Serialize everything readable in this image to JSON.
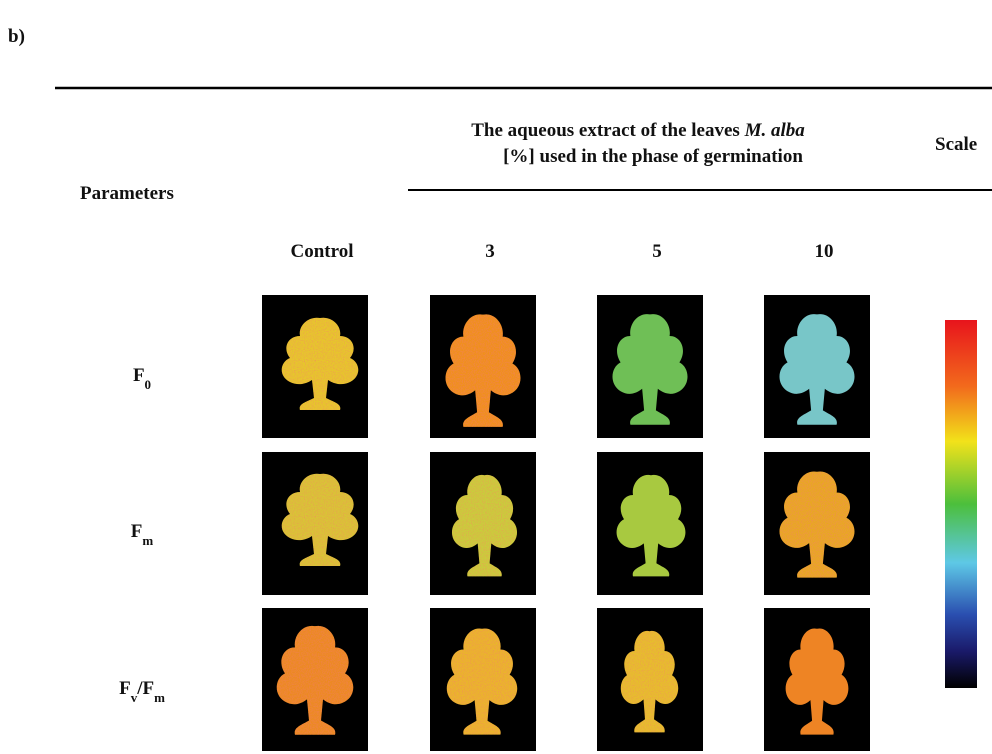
{
  "panel_label": "b)",
  "header": {
    "line1": [
      {
        "text": "The aqueous extract of the leaves "
      },
      {
        "text": "M. alba",
        "italic": true
      }
    ],
    "line2": "[%] used in the phase of germination",
    "scale": "Scale",
    "parameters": "Parameters"
  },
  "columns": [
    "Control",
    "3",
    "5",
    "10"
  ],
  "rows": [
    [
      {
        "text": "F"
      },
      {
        "text": "0",
        "sub": true
      }
    ],
    [
      {
        "text": "F"
      },
      {
        "text": "m",
        "sub": true
      }
    ],
    [
      {
        "text": "F"
      },
      {
        "text": "v",
        "sub": true
      },
      {
        "text": "/F"
      },
      {
        "text": "m",
        "sub": true
      }
    ]
  ]
}
